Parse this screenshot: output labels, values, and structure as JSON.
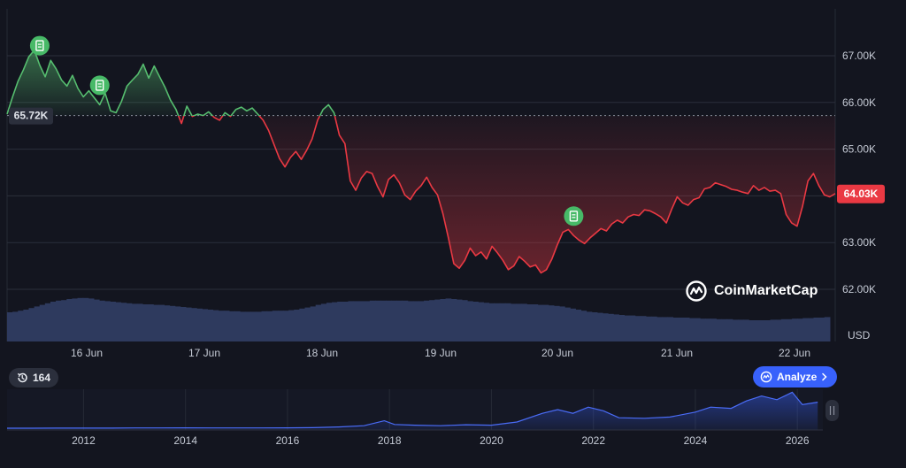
{
  "chart_data": [
    {
      "type": "line",
      "ylabel": "USD",
      "x_ticks": [
        "16 Jun",
        "17 Jun",
        "18 Jun",
        "19 Jun",
        "20 Jun",
        "21 Jun",
        "22 Jun"
      ],
      "y_ticks": [
        "67.00K",
        "66.00K",
        "65.00K",
        "64.00K",
        "63.00K",
        "62.00K"
      ],
      "ylim": [
        61.0,
        67.9
      ],
      "baseline": 65.72,
      "baseline_label": "65.72K",
      "current_label": "64.03K",
      "colors": {
        "above": "#56bd6f",
        "below": "#ea3943",
        "volume": "#2e3a5e",
        "baseline": "#8a8f9c"
      },
      "series": [
        {
          "values": [
            65.75,
            66.12,
            66.45,
            66.7,
            66.98,
            67.12,
            66.8,
            66.55,
            66.9,
            66.72,
            66.48,
            66.35,
            66.58,
            66.3,
            66.12,
            66.25,
            66.1,
            65.95,
            66.2,
            65.82,
            65.78,
            66.02,
            66.35,
            66.48,
            66.6,
            66.82,
            66.52,
            66.78,
            66.55,
            66.32,
            66.05,
            65.85,
            65.55,
            65.92,
            65.7,
            65.75,
            65.72,
            65.8,
            65.68,
            65.62,
            65.78,
            65.7,
            65.85,
            65.9,
            65.82,
            65.88,
            65.75,
            65.62,
            65.4,
            65.1,
            64.8,
            64.62,
            64.82,
            64.95,
            64.78,
            64.98,
            65.22,
            65.62,
            65.85,
            65.95,
            65.78,
            65.3,
            65.12,
            64.32,
            64.12,
            64.38,
            64.52,
            64.48,
            64.2,
            63.98,
            64.35,
            64.45,
            64.28,
            64.02,
            63.92,
            64.1,
            64.22,
            64.4,
            64.18,
            64.02,
            63.62,
            63.1,
            62.55,
            62.45,
            62.62,
            62.88,
            62.72,
            62.8,
            62.65,
            62.92,
            62.78,
            62.62,
            62.42,
            62.5,
            62.7,
            62.6,
            62.48,
            62.52,
            62.35,
            62.42,
            62.65,
            62.95,
            63.22,
            63.28,
            63.15,
            63.05,
            62.98,
            63.1,
            63.2,
            63.3,
            63.25,
            63.4,
            63.48,
            63.42,
            63.55,
            63.6,
            63.58,
            63.7,
            63.68,
            63.62,
            63.55,
            63.42,
            63.72,
            63.98,
            63.85,
            63.8,
            63.92,
            63.96,
            64.15,
            64.18,
            64.28,
            64.24,
            64.2,
            64.14,
            64.12,
            64.08,
            64.05,
            64.22,
            64.12,
            64.18,
            64.1,
            64.12,
            64.05,
            63.6,
            63.42,
            63.35,
            63.78,
            64.32,
            64.48,
            64.22,
            64.02,
            63.98,
            64.05
          ]
        },
        {
          "name": "Volume",
          "values": [
            0.55,
            0.56,
            0.58,
            0.6,
            0.63,
            0.66,
            0.69,
            0.72,
            0.75,
            0.77,
            0.78,
            0.8,
            0.81,
            0.82,
            0.82,
            0.81,
            0.79,
            0.77,
            0.76,
            0.75,
            0.74,
            0.73,
            0.72,
            0.71,
            0.71,
            0.7,
            0.7,
            0.69,
            0.69,
            0.68,
            0.67,
            0.66,
            0.65,
            0.64,
            0.63,
            0.62,
            0.61,
            0.6,
            0.59,
            0.58,
            0.58,
            0.57,
            0.57,
            0.56,
            0.56,
            0.56,
            0.56,
            0.57,
            0.57,
            0.58,
            0.58,
            0.58,
            0.59,
            0.6,
            0.62,
            0.64,
            0.66,
            0.69,
            0.71,
            0.73,
            0.74,
            0.75,
            0.75,
            0.76,
            0.76,
            0.76,
            0.76,
            0.77,
            0.77,
            0.77,
            0.77,
            0.77,
            0.77,
            0.77,
            0.76,
            0.76,
            0.76,
            0.77,
            0.78,
            0.79,
            0.8,
            0.81,
            0.8,
            0.79,
            0.78,
            0.76,
            0.75,
            0.74,
            0.73,
            0.72,
            0.72,
            0.72,
            0.72,
            0.71,
            0.71,
            0.71,
            0.7,
            0.7,
            0.69,
            0.69,
            0.68,
            0.67,
            0.66,
            0.64,
            0.62,
            0.6,
            0.58,
            0.56,
            0.55,
            0.54,
            0.53,
            0.52,
            0.51,
            0.5,
            0.49,
            0.49,
            0.48,
            0.48,
            0.47,
            0.47,
            0.46,
            0.46,
            0.46,
            0.45,
            0.45,
            0.45,
            0.44,
            0.44,
            0.43,
            0.43,
            0.43,
            0.42,
            0.42,
            0.42,
            0.41,
            0.41,
            0.41,
            0.4,
            0.4,
            0.4,
            0.4,
            0.41,
            0.41,
            0.42,
            0.42,
            0.43,
            0.43,
            0.44,
            0.44,
            0.45,
            0.45,
            0.46
          ]
        }
      ],
      "markers": [
        {
          "label": "news-icon",
          "index": 6
        },
        {
          "label": "news-icon",
          "index": 17
        },
        {
          "label": "news-icon",
          "index": 104
        }
      ]
    },
    {
      "type": "area",
      "x_ticks": [
        "2012",
        "2014",
        "2016",
        "2018",
        "2020",
        "2022",
        "2024",
        "2026"
      ],
      "xlim": [
        2010.5,
        2026.5
      ],
      "x": [
        2010.5,
        2011,
        2011.5,
        2012,
        2012.5,
        2013,
        2013.5,
        2014,
        2014.5,
        2015,
        2015.5,
        2016,
        2016.5,
        2017,
        2017.5,
        2017.9,
        2018.1,
        2018.5,
        2019,
        2019.5,
        2020,
        2020.5,
        2021,
        2021.3,
        2021.6,
        2021.9,
        2022.2,
        2022.5,
        2023,
        2023.5,
        2024,
        2024.3,
        2024.7,
        2025,
        2025.3,
        2025.6,
        2025.9,
        2026.1,
        2026.4
      ],
      "values": [
        0.0,
        0.001,
        0.002,
        0.003,
        0.005,
        0.01,
        0.012,
        0.015,
        0.012,
        0.01,
        0.012,
        0.015,
        0.02,
        0.05,
        0.1,
        0.3,
        0.15,
        0.12,
        0.1,
        0.14,
        0.12,
        0.25,
        0.6,
        0.75,
        0.6,
        0.85,
        0.7,
        0.42,
        0.4,
        0.45,
        0.65,
        0.85,
        0.8,
        1.1,
        1.3,
        1.15,
        1.45,
        0.95,
        1.05
      ]
    }
  ],
  "history_badge": {
    "count": "164",
    "icon": "history-icon"
  },
  "analyze_button": {
    "label": "Analyze"
  },
  "brand": {
    "name": "CoinMarketCap",
    "icon": "coinmarketcap-logo-icon"
  }
}
